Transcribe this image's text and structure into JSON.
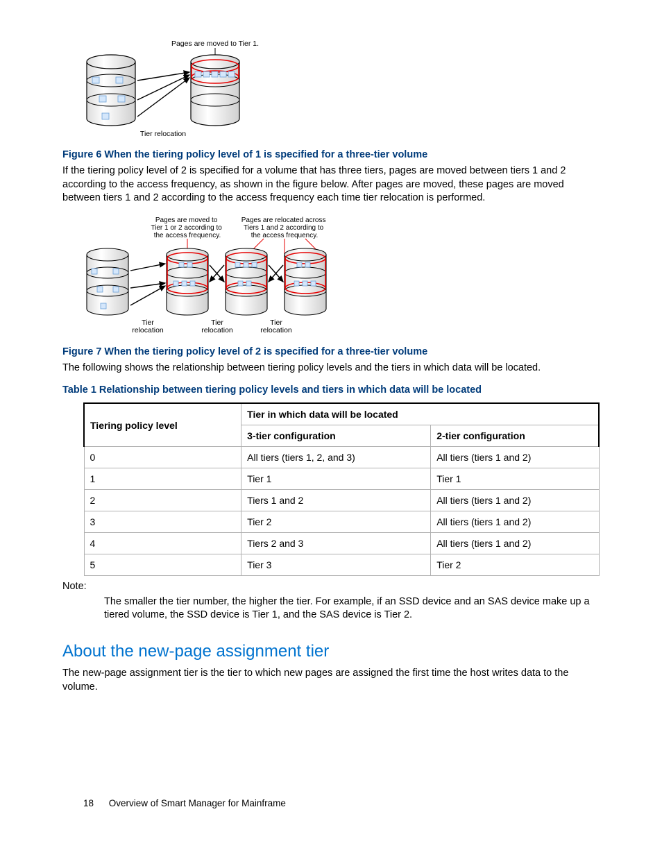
{
  "fig6": {
    "toplabel": "Pages are moved to Tier 1.",
    "bottomlabel": "Tier relocation",
    "caption": "Figure 6 When the tiering policy level of 1 is specified for a three-tier volume"
  },
  "para1": "If the tiering policy level of 2 is specified for a volume that has three tiers, pages are moved between tiers 1 and 2 according to the access frequency, as shown in the figure below. After pages are moved, these pages are moved between tiers 1 and 2 according to the access frequency each time tier relocation is performed.",
  "fig7": {
    "label_left": "Pages are moved to Tier 1 or 2 according to the access frequency.",
    "label_right": "Pages are relocated across Tiers 1 and 2 according to the access frequency.",
    "tier_reloc": "Tier relocation",
    "caption": "Figure 7 When the tiering policy level of 2 is specified for a three-tier volume"
  },
  "para2": "The following shows the relationship between tiering policy levels and the tiers in which data will be located.",
  "table": {
    "caption": "Table 1 Relationship between tiering policy levels and tiers in which data will be located",
    "col0": "Tiering policy level",
    "colspan": "Tier in which data will be located",
    "col1": "3-tier configuration",
    "col2": "2-tier configuration",
    "rows": [
      {
        "a": "0",
        "b": "All tiers (tiers 1, 2, and 3)",
        "c": "All tiers (tiers 1 and 2)"
      },
      {
        "a": "1",
        "b": "Tier 1",
        "c": "Tier 1"
      },
      {
        "a": "2",
        "b": "Tiers 1 and 2",
        "c": "All tiers (tiers 1 and 2)"
      },
      {
        "a": "3",
        "b": "Tier 2",
        "c": "All tiers (tiers 1 and 2)"
      },
      {
        "a": "4",
        "b": "Tiers 2 and 3",
        "c": "All tiers (tiers 1 and 2)"
      },
      {
        "a": "5",
        "b": "Tier 3",
        "c": "Tier 2"
      }
    ]
  },
  "note_label": "Note:",
  "note_body": "The smaller the tier number, the higher the tier. For example, if an SSD device and an SAS device make up a tiered volume, the SSD device is Tier 1, and the SAS device is Tier 2.",
  "section_heading": "About the new-page assignment tier",
  "section_body": "The new-page assignment tier is the tier to which new pages are assigned the first time the host writes data to the volume.",
  "footer": {
    "page": "18",
    "title": "Overview of Smart Manager for Mainframe"
  }
}
